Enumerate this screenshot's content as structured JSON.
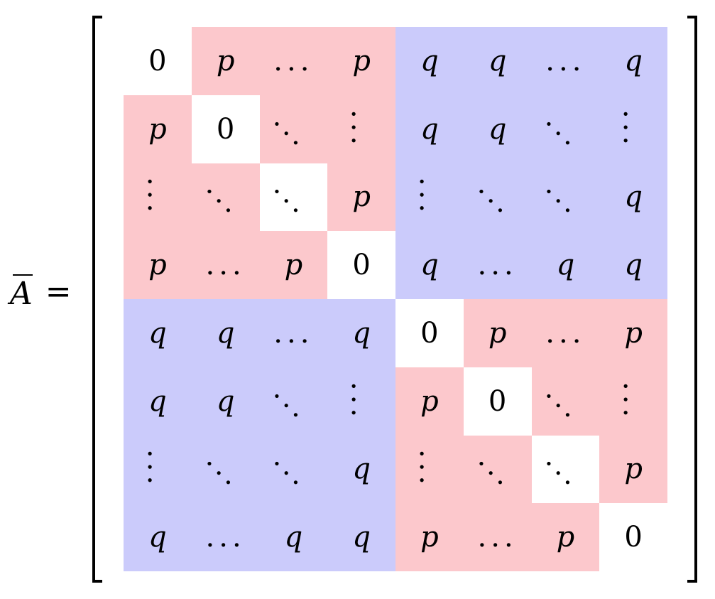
{
  "lhs": {
    "symbol": "A",
    "equals": "="
  },
  "colors": {
    "p_block": "#fcc8cc",
    "q_block": "#cbcbfb",
    "zero": "#ffffff"
  },
  "matrix": {
    "rows": [
      [
        {
          "t": "0",
          "c": "z"
        },
        {
          "t": "p",
          "c": "p"
        },
        {
          "t": "...",
          "c": "p"
        },
        {
          "t": "p",
          "c": "p"
        },
        {
          "t": "q",
          "c": "q"
        },
        {
          "t": "q",
          "c": "q"
        },
        {
          "t": "...",
          "c": "q"
        },
        {
          "t": "q",
          "c": "q"
        }
      ],
      [
        {
          "t": "p",
          "c": "p"
        },
        {
          "t": "0",
          "c": "z"
        },
        {
          "t": "ddots",
          "c": "p"
        },
        {
          "t": "vdots",
          "c": "p"
        },
        {
          "t": "q",
          "c": "q"
        },
        {
          "t": "q",
          "c": "q"
        },
        {
          "t": "ddots",
          "c": "q"
        },
        {
          "t": "vdots",
          "c": "q"
        }
      ],
      [
        {
          "t": "vdots",
          "c": "p"
        },
        {
          "t": "ddots",
          "c": "p"
        },
        {
          "t": "ddots",
          "c": "z"
        },
        {
          "t": "p",
          "c": "p"
        },
        {
          "t": "vdots",
          "c": "q"
        },
        {
          "t": "ddots",
          "c": "q"
        },
        {
          "t": "ddots",
          "c": "q"
        },
        {
          "t": "q",
          "c": "q"
        }
      ],
      [
        {
          "t": "p",
          "c": "p"
        },
        {
          "t": "...",
          "c": "p"
        },
        {
          "t": "p",
          "c": "p"
        },
        {
          "t": "0",
          "c": "z"
        },
        {
          "t": "q",
          "c": "q"
        },
        {
          "t": "...",
          "c": "q"
        },
        {
          "t": "q",
          "c": "q"
        },
        {
          "t": "q",
          "c": "q"
        }
      ],
      [
        {
          "t": "q",
          "c": "q"
        },
        {
          "t": "q",
          "c": "q"
        },
        {
          "t": "...",
          "c": "q"
        },
        {
          "t": "q",
          "c": "q"
        },
        {
          "t": "0",
          "c": "z"
        },
        {
          "t": "p",
          "c": "p"
        },
        {
          "t": "...",
          "c": "p"
        },
        {
          "t": "p",
          "c": "p"
        }
      ],
      [
        {
          "t": "q",
          "c": "q"
        },
        {
          "t": "q",
          "c": "q"
        },
        {
          "t": "ddots",
          "c": "q"
        },
        {
          "t": "vdots",
          "c": "q"
        },
        {
          "t": "p",
          "c": "p"
        },
        {
          "t": "0",
          "c": "z"
        },
        {
          "t": "ddots",
          "c": "p"
        },
        {
          "t": "vdots",
          "c": "p"
        }
      ],
      [
        {
          "t": "vdots",
          "c": "q"
        },
        {
          "t": "ddots",
          "c": "q"
        },
        {
          "t": "ddots",
          "c": "q"
        },
        {
          "t": "q",
          "c": "q"
        },
        {
          "t": "vdots",
          "c": "p"
        },
        {
          "t": "ddots",
          "c": "p"
        },
        {
          "t": "ddots",
          "c": "z"
        },
        {
          "t": "p",
          "c": "p"
        }
      ],
      [
        {
          "t": "q",
          "c": "q"
        },
        {
          "t": "...",
          "c": "q"
        },
        {
          "t": "q",
          "c": "q"
        },
        {
          "t": "q",
          "c": "q"
        },
        {
          "t": "p",
          "c": "p"
        },
        {
          "t": "...",
          "c": "p"
        },
        {
          "t": "p",
          "c": "p"
        },
        {
          "t": "0",
          "c": "z"
        }
      ]
    ]
  }
}
